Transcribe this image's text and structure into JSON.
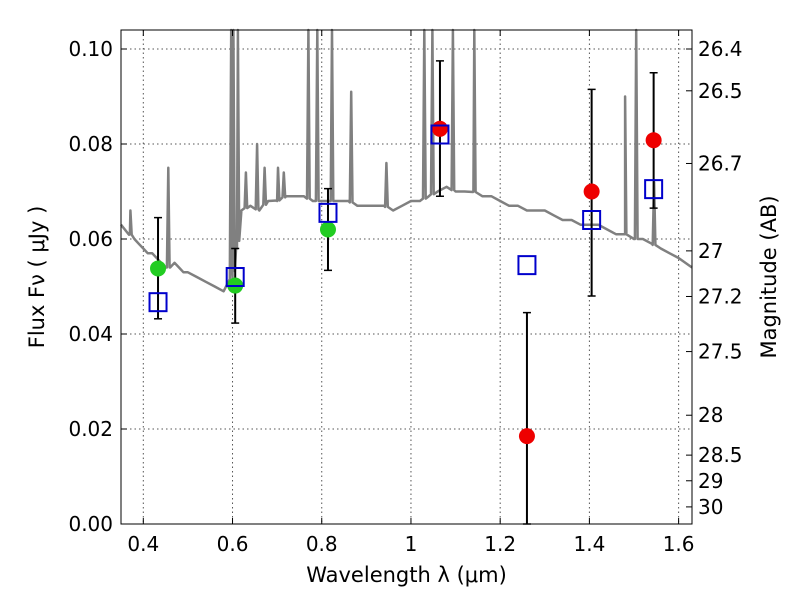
{
  "chart_data": {
    "type": "scatter",
    "xlabel": "Wavelength  λ (μm)",
    "ylabel": "Flux  Fν  ( μJy )",
    "y2label": "Magnitude (AB)",
    "xlim": [
      0.35,
      1.63
    ],
    "ylim": [
      0.0,
      0.104
    ],
    "grid": true,
    "x_ticks": [
      0.4,
      0.6,
      0.8,
      1.0,
      1.2,
      1.4,
      1.6
    ],
    "x_tick_labels": [
      "0.4",
      "0.6",
      "0.8",
      "1",
      "1.2",
      "1.4",
      "1.6"
    ],
    "y_ticks": [
      0.0,
      0.02,
      0.04,
      0.06,
      0.08,
      0.1
    ],
    "y_tick_labels": [
      "0.00",
      "0.02",
      "0.04",
      "0.06",
      "0.08",
      "0.10"
    ],
    "y2_ticks": [
      {
        "label": "26.4",
        "flux": 0.1
      },
      {
        "label": "26.5",
        "flux": 0.0912
      },
      {
        "label": "26.7",
        "flux": 0.0759
      },
      {
        "label": "27",
        "flux": 0.0575
      },
      {
        "label": "27.2",
        "flux": 0.0479
      },
      {
        "label": "27.5",
        "flux": 0.0363
      },
      {
        "label": "28",
        "flux": 0.0229
      },
      {
        "label": "28.5",
        "flux": 0.0145
      },
      {
        "label": "29",
        "flux": 0.0091
      },
      {
        "label": "30",
        "flux": 0.0036
      }
    ],
    "series": [
      {
        "marker": "circle",
        "color": "#22cc22",
        "x": [
          0.433,
          0.606,
          0.814
        ],
        "y": [
          0.0538,
          0.0502,
          0.062
        ],
        "yerr_low": [
          0.0432,
          0.0423,
          0.0534
        ],
        "yerr_high": [
          0.0645,
          0.058,
          0.0706
        ]
      },
      {
        "marker": "circle",
        "color": "#ee0000",
        "x": [
          1.065,
          1.26,
          1.405,
          1.544
        ],
        "y": [
          0.0832,
          0.0185,
          0.07,
          0.0808
        ],
        "yerr_low": [
          0.069,
          0.0,
          0.048,
          0.0665
        ],
        "yerr_high": [
          0.0975,
          0.0445,
          0.0915,
          0.095
        ]
      },
      {
        "marker": "open-square",
        "color": "#0000cc",
        "x": [
          0.433,
          0.606,
          0.814,
          1.065,
          1.26,
          1.405,
          1.544
        ],
        "y": [
          0.0467,
          0.052,
          0.0655,
          0.082,
          0.0545,
          0.064,
          0.0705
        ]
      },
      {
        "marker": "line",
        "color": "#808080",
        "x": [
          0.35,
          0.37,
          0.38,
          0.39,
          0.4,
          0.41,
          0.42,
          0.43,
          0.44,
          0.45,
          0.46,
          0.47,
          0.48,
          0.49,
          0.5,
          0.52,
          0.54,
          0.56,
          0.58,
          0.6,
          0.61,
          0.62,
          0.64,
          0.66,
          0.68,
          0.7,
          0.72,
          0.74,
          0.76,
          0.78,
          0.8,
          0.82,
          0.84,
          0.86,
          0.88,
          0.9,
          0.92,
          0.94,
          0.96,
          0.98,
          1.0,
          1.02,
          1.04,
          1.06,
          1.08,
          1.1,
          1.12,
          1.14,
          1.16,
          1.18,
          1.2,
          1.22,
          1.24,
          1.26,
          1.28,
          1.3,
          1.32,
          1.34,
          1.36,
          1.38,
          1.4,
          1.42,
          1.44,
          1.46,
          1.48,
          1.5,
          1.52,
          1.54,
          1.56,
          1.58,
          1.6,
          1.63
        ],
        "y": [
          0.063,
          0.061,
          0.06,
          0.059,
          0.058,
          0.057,
          0.057,
          0.056,
          0.055,
          0.054,
          0.054,
          0.055,
          0.054,
          0.053,
          0.053,
          0.052,
          0.051,
          0.05,
          0.049,
          0.052,
          0.058,
          0.066,
          0.067,
          0.066,
          0.068,
          0.068,
          0.069,
          0.069,
          0.069,
          0.068,
          0.068,
          0.068,
          0.068,
          0.068,
          0.067,
          0.067,
          0.067,
          0.067,
          0.066,
          0.067,
          0.068,
          0.068,
          0.069,
          0.07,
          0.071,
          0.07,
          0.07,
          0.07,
          0.069,
          0.069,
          0.068,
          0.067,
          0.067,
          0.066,
          0.066,
          0.066,
          0.065,
          0.064,
          0.064,
          0.063,
          0.063,
          0.063,
          0.062,
          0.061,
          0.061,
          0.06,
          0.06,
          0.059,
          0.058,
          0.057,
          0.056,
          0.054
        ]
      }
    ],
    "line_spikes": [
      {
        "x": 0.371,
        "y": 0.066
      },
      {
        "x": 0.456,
        "y": 0.075
      },
      {
        "x": 0.597,
        "y": 0.104
      },
      {
        "x": 0.602,
        "y": 0.104
      },
      {
        "x": 0.612,
        "y": 0.104
      },
      {
        "x": 0.63,
        "y": 0.074
      },
      {
        "x": 0.655,
        "y": 0.08
      },
      {
        "x": 0.672,
        "y": 0.075
      },
      {
        "x": 0.702,
        "y": 0.075
      },
      {
        "x": 0.715,
        "y": 0.074
      },
      {
        "x": 0.77,
        "y": 0.104
      },
      {
        "x": 0.79,
        "y": 0.104
      },
      {
        "x": 0.823,
        "y": 0.104
      },
      {
        "x": 0.866,
        "y": 0.091
      },
      {
        "x": 0.945,
        "y": 0.076
      },
      {
        "x": 1.03,
        "y": 0.104
      },
      {
        "x": 1.048,
        "y": 0.104
      },
      {
        "x": 1.094,
        "y": 0.104
      },
      {
        "x": 1.142,
        "y": 0.104
      },
      {
        "x": 1.48,
        "y": 0.09
      },
      {
        "x": 1.505,
        "y": 0.104
      },
      {
        "x": 1.545,
        "y": 0.072
      }
    ]
  }
}
